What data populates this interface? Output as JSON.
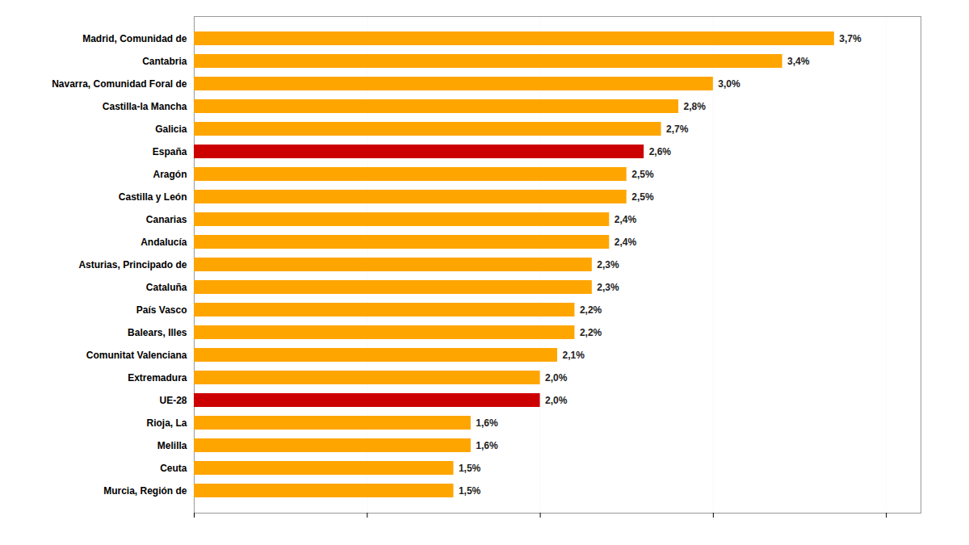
{
  "chart_data": {
    "type": "bar",
    "orientation": "horizontal",
    "categories": [
      "Murcia, Región de",
      "Ceuta",
      "Melilla",
      "Rioja, La",
      "UE-28",
      "Extremadura",
      "Comunitat Valenciana",
      "Balears, Illes",
      "País Vasco",
      "Cataluña",
      "Asturias, Principado de",
      "Andalucía",
      "Canarias",
      "Castilla y León",
      "Aragón",
      "España",
      "Galicia",
      "Castilla-la Mancha",
      "Navarra, Comunidad Foral de",
      "Cantabria",
      "Madrid, Comunidad de"
    ],
    "values": [
      1.5,
      1.5,
      1.6,
      1.6,
      2.0,
      2.0,
      2.1,
      2.2,
      2.2,
      2.3,
      2.3,
      2.4,
      2.4,
      2.5,
      2.5,
      2.6,
      2.7,
      2.8,
      3.0,
      3.4,
      3.7
    ],
    "value_labels": [
      "1,5%",
      "1,5%",
      "1,6%",
      "1,6%",
      "2,0%",
      "2,0%",
      "2,1%",
      "2,2%",
      "2,2%",
      "2,3%",
      "2,3%",
      "2,4%",
      "2,4%",
      "2,5%",
      "2,5%",
      "2,6%",
      "2,7%",
      "2,8%",
      "3,0%",
      "3,4%",
      "3,7%"
    ],
    "colors": [
      "#FFA500",
      "#FFA500",
      "#FFA500",
      "#FFA500",
      "#CC0000",
      "#FFA500",
      "#FFA500",
      "#FFA500",
      "#FFA500",
      "#FFA500",
      "#FFA500",
      "#FFA500",
      "#FFA500",
      "#FFA500",
      "#FFA500",
      "#CC0000",
      "#FFA500",
      "#FFA500",
      "#FFA500",
      "#FFA500",
      "#FFA500"
    ],
    "xlim": [
      0,
      4.2
    ],
    "xticks": [
      0,
      1,
      2,
      3,
      4
    ],
    "grid": true,
    "data_labels": true,
    "tick_labels": "y"
  }
}
